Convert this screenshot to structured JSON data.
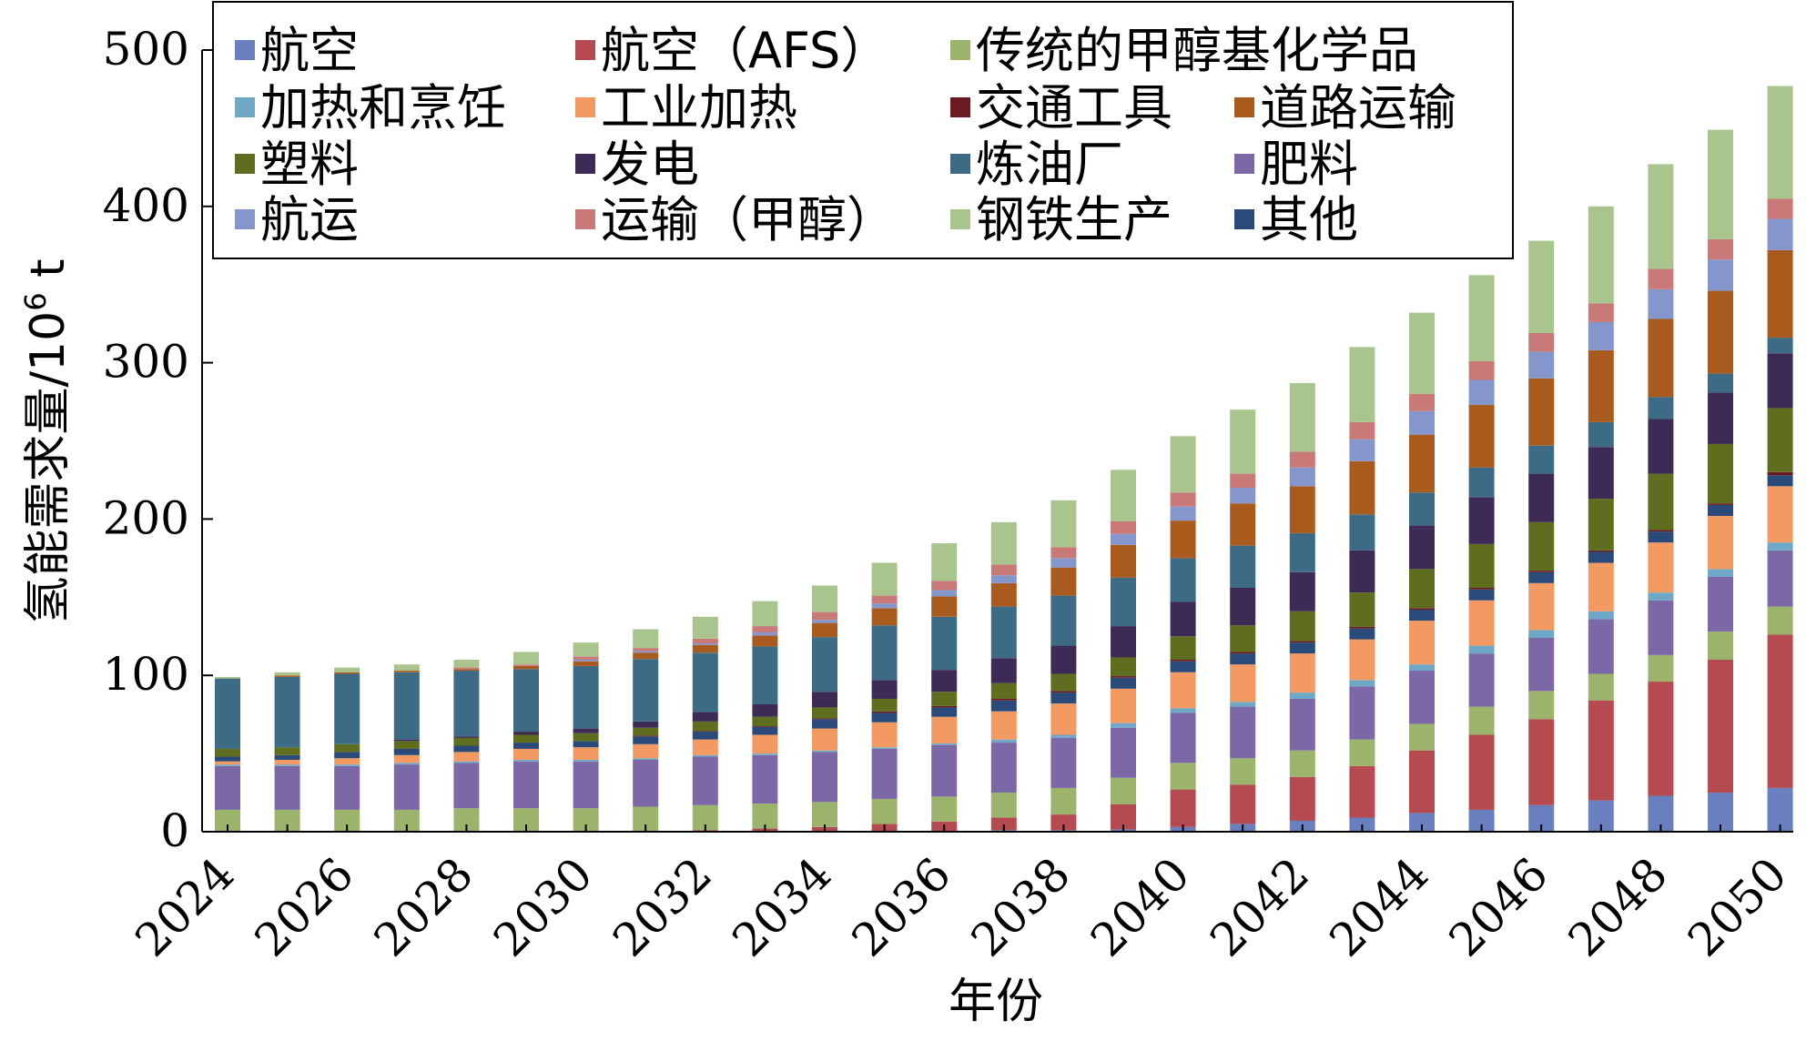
{
  "chart_data": {
    "type": "bar",
    "stacked": true,
    "xlabel": "年份",
    "ylabel_main": "氢能需求量/10",
    "ylabel_sup": "6",
    "ylabel_unit": " t",
    "ylim": [
      0,
      500
    ],
    "yticks": [
      0,
      100,
      200,
      300,
      400,
      500
    ],
    "x_tick_labels": [
      "2024",
      "2026",
      "2028",
      "2030",
      "2032",
      "2034",
      "2036",
      "2038",
      "2040",
      "2042",
      "2044",
      "2046",
      "2048",
      "2050"
    ],
    "categories": [
      "2024",
      "2025",
      "2026",
      "2027",
      "2028",
      "2029",
      "2030",
      "2031",
      "2032",
      "2033",
      "2034",
      "2035",
      "2036",
      "2037",
      "2038",
      "2039",
      "2040",
      "2041",
      "2042",
      "2043",
      "2044",
      "2045",
      "2046",
      "2047",
      "2048",
      "2049",
      "2050"
    ],
    "grid": false,
    "legend_position": "top",
    "series": [
      {
        "name": "航空",
        "color": "#6A7FBF",
        "values": [
          0,
          0,
          0,
          0,
          0,
          0,
          0,
          0,
          0,
          0,
          0,
          0,
          0.5,
          1,
          1,
          1.5,
          3,
          5,
          7,
          9,
          12,
          14,
          17,
          20,
          23,
          25,
          28
        ]
      },
      {
        "name": "航空（AFS）",
        "color": "#B54A51",
        "values": [
          0,
          0,
          0,
          0,
          0,
          0,
          0,
          0,
          1,
          2,
          3,
          5,
          6,
          8,
          10,
          16,
          24,
          25,
          28,
          33,
          40,
          48,
          55,
          64,
          73,
          85,
          98
        ]
      },
      {
        "name": "传统的甲醇基化学品",
        "color": "#9BB36A",
        "values": [
          14,
          14,
          14,
          14,
          15,
          15,
          15,
          16,
          16,
          16,
          16,
          16,
          16,
          16,
          17,
          17,
          17,
          17,
          17,
          17,
          17,
          18,
          18,
          17,
          17,
          18,
          18
        ]
      },
      {
        "name": "肥料",
        "color": "#7C68A6",
        "values": [
          28,
          28,
          28,
          29,
          29,
          30,
          30,
          30,
          31,
          31,
          32,
          32,
          33,
          32,
          32,
          32,
          32,
          33,
          33,
          34,
          34,
          34,
          34,
          35,
          35,
          35,
          36
        ]
      },
      {
        "name": "加热和烹饪",
        "color": "#6FA8C7",
        "values": [
          1,
          1,
          1,
          1,
          1,
          1,
          1,
          1,
          1,
          1,
          1,
          1,
          1,
          2,
          2,
          3,
          3,
          3,
          4,
          4,
          4,
          5,
          5,
          5,
          5,
          5,
          5
        ]
      },
      {
        "name": "工业加热",
        "color": "#F29A61",
        "values": [
          2,
          3,
          4,
          5,
          6,
          7,
          8,
          9,
          10,
          12,
          14,
          16,
          17,
          18,
          20,
          22,
          23,
          24,
          25,
          26,
          28,
          29,
          30,
          31,
          32,
          34,
          36
        ]
      },
      {
        "name": "其他",
        "color": "#2A4A7A",
        "values": [
          3,
          3,
          4,
          4,
          4,
          4,
          4,
          5,
          5,
          5,
          6,
          6,
          6,
          7,
          7,
          7,
          7,
          7,
          7,
          7,
          7,
          7,
          7,
          7,
          7,
          7,
          7
        ]
      },
      {
        "name": "交通工具",
        "color": "#6B1A22",
        "values": [
          0,
          0,
          0,
          0,
          0,
          0,
          0,
          0.5,
          0.5,
          0.5,
          0.5,
          1,
          1,
          1,
          1,
          1,
          1,
          1,
          1,
          1,
          1,
          1,
          1,
          1,
          1,
          1,
          2
        ]
      },
      {
        "name": "塑料",
        "color": "#5F6E1E",
        "values": [
          5,
          5,
          5,
          5,
          5,
          5,
          5,
          5,
          6,
          6,
          7,
          8,
          9,
          10,
          11,
          12,
          15,
          17,
          19,
          22,
          25,
          28,
          31,
          33,
          36,
          38,
          41
        ]
      },
      {
        "name": "发电",
        "color": "#3D2A55",
        "values": [
          0,
          0,
          0,
          1,
          1,
          2,
          3,
          4,
          6,
          8,
          10,
          12,
          14,
          16,
          18,
          20,
          22,
          24,
          25,
          27,
          28,
          30,
          31,
          33,
          35,
          33,
          35
        ]
      },
      {
        "name": "炼油厂",
        "color": "#3D6B86",
        "values": [
          45,
          45,
          45,
          43,
          42,
          40,
          40,
          40,
          38,
          37,
          35,
          35,
          34,
          33,
          32,
          31,
          28,
          27,
          25,
          23,
          21,
          19,
          18,
          16,
          14,
          12,
          10
        ]
      },
      {
        "name": "道路运输",
        "color": "#A95B1E",
        "values": [
          0,
          1,
          1,
          1,
          1,
          2,
          3,
          4,
          5,
          7,
          9,
          11,
          13,
          15,
          18,
          21,
          24,
          27,
          30,
          34,
          37,
          40,
          43,
          46,
          50,
          53,
          56
        ]
      },
      {
        "name": "航运",
        "color": "#8596CC",
        "values": [
          0,
          0,
          0,
          0,
          0,
          0,
          1,
          1,
          1,
          2,
          2,
          3,
          4,
          5,
          6,
          7,
          9,
          10,
          12,
          14,
          15,
          16,
          17,
          18,
          19,
          20,
          20
        ]
      },
      {
        "name": "运输（甲醇）",
        "color": "#C97A78",
        "values": [
          0,
          0,
          0,
          0,
          1,
          1,
          2,
          2,
          3,
          4,
          5,
          5,
          6,
          7,
          7,
          8,
          9,
          9,
          10,
          11,
          11,
          12,
          12,
          12,
          13,
          13,
          13
        ]
      },
      {
        "name": "钢铁生产",
        "color": "#A9C58D",
        "values": [
          1,
          2,
          3,
          4,
          5,
          8,
          9,
          12,
          14,
          16,
          17,
          21,
          24,
          27,
          30,
          33,
          36,
          41,
          44,
          48,
          52,
          55,
          59,
          62,
          67,
          70,
          72
        ]
      }
    ]
  },
  "legend": {
    "rows": [
      [
        "航空",
        "航空（AFS）",
        "传统的甲醇基化学品"
      ],
      [
        "加热和烹饪",
        "工业加热",
        "交通工具",
        "道路运输"
      ],
      [
        "塑料",
        "发电",
        "炼油厂",
        "肥料"
      ],
      [
        "航运",
        "运输（甲醇）",
        "钢铁生产",
        "其他"
      ]
    ]
  }
}
